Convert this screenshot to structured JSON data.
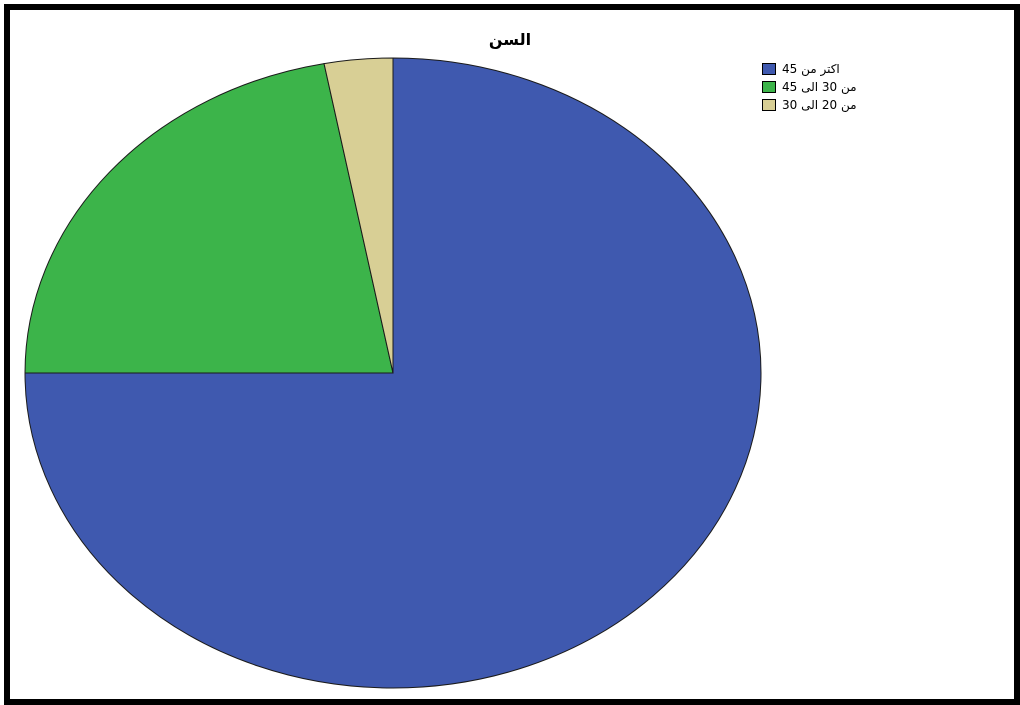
{
  "chart_data": {
    "type": "pie",
    "title": "السن",
    "series": [
      {
        "name": "اكتر من 45",
        "value": 75,
        "color": "#3F59AF"
      },
      {
        "name": "من 30 الى 45",
        "value": 22,
        "color": "#3CB44A"
      },
      {
        "name": "من 20 الى 30",
        "value": 3,
        "color": "#D8CF95"
      }
    ],
    "legend": "top-right"
  }
}
